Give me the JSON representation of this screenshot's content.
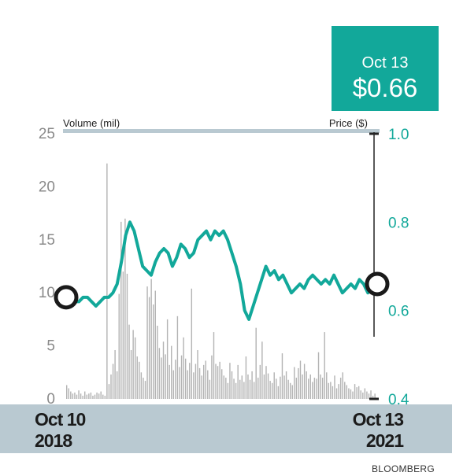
{
  "callout": {
    "date": "Oct 13",
    "price": "$0.66"
  },
  "axis_titles": {
    "volume": "Volume (mil)",
    "price": "Price ($)"
  },
  "x_labels": {
    "start": [
      "Oct 10",
      "2018"
    ],
    "end": [
      "Oct 13",
      "2021"
    ]
  },
  "source": "BLOOMBERG",
  "colors": {
    "price_line": "#12a89a",
    "volume_bars": "#b3b3b3",
    "band": "#b9c9d1",
    "accent": "#12a89a"
  },
  "chart_data": {
    "type": "line",
    "title": "",
    "xlabel": "",
    "x_range": [
      "Oct 10 2018",
      "Oct 13 2021"
    ],
    "left_axis": {
      "label": "Volume (mil)",
      "ylim": [
        0,
        25
      ],
      "ticks": [
        0,
        5,
        10,
        15,
        20,
        25
      ]
    },
    "right_axis": {
      "label": "Price ($)",
      "ylim": [
        0.4,
        1.0
      ],
      "ticks": [
        0.4,
        0.6,
        0.8,
        1.0
      ]
    },
    "grid": false,
    "legend": "none",
    "price_series": {
      "name": "Price ($)",
      "start": 0.63,
      "end": 0.66,
      "values": [
        0.63,
        0.62,
        0.62,
        0.62,
        0.63,
        0.63,
        0.62,
        0.61,
        0.62,
        0.63,
        0.63,
        0.64,
        0.66,
        0.71,
        0.77,
        0.8,
        0.78,
        0.74,
        0.7,
        0.69,
        0.68,
        0.71,
        0.73,
        0.74,
        0.73,
        0.7,
        0.72,
        0.75,
        0.74,
        0.72,
        0.73,
        0.76,
        0.77,
        0.78,
        0.76,
        0.78,
        0.77,
        0.78,
        0.76,
        0.73,
        0.7,
        0.66,
        0.6,
        0.58,
        0.61,
        0.64,
        0.67,
        0.7,
        0.68,
        0.69,
        0.67,
        0.68,
        0.66,
        0.64,
        0.65,
        0.66,
        0.65,
        0.67,
        0.68,
        0.67,
        0.66,
        0.67,
        0.66,
        0.68,
        0.66,
        0.64,
        0.65,
        0.66,
        0.65,
        0.67,
        0.66,
        0.64,
        0.66,
        0.66
      ]
    },
    "volume_series": {
      "name": "Volume (mil)",
      "values": [
        1.3,
        1.0,
        0.7,
        0.5,
        0.6,
        0.4,
        0.8,
        0.5,
        0.3,
        0.7,
        0.4,
        0.5,
        0.6,
        0.3,
        0.4,
        0.6,
        0.5,
        0.7,
        0.4,
        0.3,
        22.2,
        1.4,
        2.3,
        3.3,
        4.6,
        2.6,
        9.9,
        16.7,
        12.0,
        17.0,
        11.8,
        7.0,
        4.6,
        6.5,
        5.8,
        4.0,
        3.5,
        2.5,
        2.0,
        1.7,
        10.6,
        9.6,
        11.3,
        8.9,
        10.2,
        6.9,
        4.8,
        3.9,
        5.4,
        4.2,
        7.5,
        3.2,
        5.0,
        2.7,
        3.7,
        7.8,
        3.0,
        4.1,
        5.8,
        3.8,
        2.7,
        3.4,
        10.4,
        2.5,
        3.3,
        4.6,
        2.9,
        2.2,
        3.2,
        3.6,
        2.7,
        1.8,
        4.1,
        6.3,
        3.3,
        3.1,
        3.5,
        2.8,
        2.2,
        2.0,
        1.5,
        3.4,
        2.6,
        1.9,
        1.5,
        3.2,
        1.8,
        2.2,
        1.6,
        4.0,
        2.3,
        1.8,
        2.6,
        1.6,
        6.7,
        2.0,
        3.2,
        5.4,
        2.3,
        3.1,
        2.4,
        1.7,
        1.5,
        2.5,
        1.9,
        1.2,
        2.1,
        4.3,
        2.2,
        2.6,
        1.8,
        1.5,
        1.3,
        3.0,
        2.0,
        2.9,
        3.6,
        2.3,
        3.3,
        2.6,
        1.9,
        2.3,
        1.6,
        2.0,
        1.9,
        4.4,
        2.3,
        2.0,
        6.3,
        2.5,
        1.5,
        1.6,
        1.2,
        2.2,
        1.0,
        1.4,
        2.0,
        2.5,
        1.6,
        1.3,
        1.0,
        0.9,
        0.7,
        1.4,
        1.1,
        1.2,
        0.8,
        0.6,
        1.0,
        0.7,
        0.5,
        0.8,
        0.3,
        0.5
      ]
    }
  }
}
